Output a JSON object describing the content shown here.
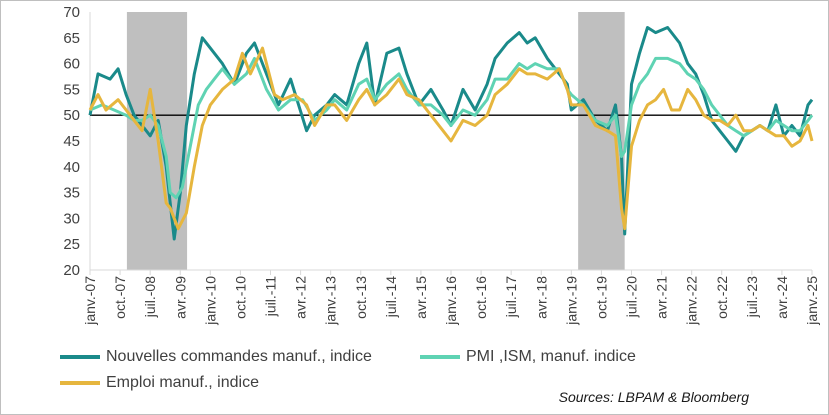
{
  "chart_data": {
    "type": "line",
    "ylim": [
      20,
      70
    ],
    "yticks": [
      20,
      25,
      30,
      35,
      40,
      45,
      50,
      55,
      60,
      65,
      70
    ],
    "xlim": [
      2007.0,
      2025.0
    ],
    "reference_line": 50,
    "recessions": [
      [
        2007.92,
        2009.42
      ],
      [
        2019.17,
        2020.33
      ]
    ],
    "xtick_labels": [
      "janv.-07",
      "oct.-07",
      "juil.-08",
      "avr.-09",
      "janv.-10",
      "oct.-10",
      "juil.-11",
      "avr.-12",
      "janv.-13",
      "oct.-13",
      "juil.-14",
      "avr.-15",
      "janv.-16",
      "oct.-16",
      "juil.-17",
      "avr.-18",
      "janv.-19",
      "oct.-19",
      "juil.-20",
      "avr.-21",
      "janv.-22",
      "oct.-22",
      "juil.-23",
      "avr.-24",
      "janv.-25"
    ],
    "series": [
      {
        "name": "Nouvelles commandes manuf., indice",
        "color": "#1a8a8a",
        "points": [
          [
            2007.0,
            50
          ],
          [
            2007.2,
            58
          ],
          [
            2007.5,
            57
          ],
          [
            2007.7,
            59
          ],
          [
            2007.9,
            54
          ],
          [
            2008.1,
            50
          ],
          [
            2008.3,
            48
          ],
          [
            2008.5,
            46
          ],
          [
            2008.7,
            49
          ],
          [
            2008.9,
            40
          ],
          [
            2009.0,
            33
          ],
          [
            2009.1,
            26
          ],
          [
            2009.25,
            35
          ],
          [
            2009.4,
            48
          ],
          [
            2009.6,
            58
          ],
          [
            2009.8,
            65
          ],
          [
            2010.0,
            63
          ],
          [
            2010.3,
            60
          ],
          [
            2010.6,
            56
          ],
          [
            2010.9,
            62
          ],
          [
            2011.1,
            64
          ],
          [
            2011.4,
            58
          ],
          [
            2011.7,
            52
          ],
          [
            2012.0,
            57
          ],
          [
            2012.2,
            52
          ],
          [
            2012.4,
            47
          ],
          [
            2012.6,
            50
          ],
          [
            2012.9,
            52
          ],
          [
            2013.1,
            54
          ],
          [
            2013.4,
            52
          ],
          [
            2013.7,
            60
          ],
          [
            2013.9,
            64
          ],
          [
            2014.1,
            52
          ],
          [
            2014.4,
            62
          ],
          [
            2014.7,
            63
          ],
          [
            2014.9,
            58
          ],
          [
            2015.2,
            52
          ],
          [
            2015.5,
            55
          ],
          [
            2015.8,
            51
          ],
          [
            2016.0,
            48
          ],
          [
            2016.3,
            55
          ],
          [
            2016.6,
            51
          ],
          [
            2016.9,
            56
          ],
          [
            2017.1,
            61
          ],
          [
            2017.4,
            64
          ],
          [
            2017.7,
            66
          ],
          [
            2017.9,
            64
          ],
          [
            2018.1,
            65
          ],
          [
            2018.4,
            61
          ],
          [
            2018.7,
            58
          ],
          [
            2018.9,
            56
          ],
          [
            2019.0,
            51
          ],
          [
            2019.3,
            53
          ],
          [
            2019.6,
            49
          ],
          [
            2019.9,
            47
          ],
          [
            2020.1,
            52
          ],
          [
            2020.25,
            42
          ],
          [
            2020.33,
            27
          ],
          [
            2020.5,
            56
          ],
          [
            2020.7,
            62
          ],
          [
            2020.9,
            67
          ],
          [
            2021.1,
            66
          ],
          [
            2021.4,
            67
          ],
          [
            2021.7,
            64
          ],
          [
            2021.9,
            60
          ],
          [
            2022.1,
            58
          ],
          [
            2022.3,
            54
          ],
          [
            2022.5,
            49
          ],
          [
            2022.7,
            47
          ],
          [
            2022.9,
            45
          ],
          [
            2023.1,
            43
          ],
          [
            2023.3,
            46
          ],
          [
            2023.5,
            47
          ],
          [
            2023.7,
            48
          ],
          [
            2023.9,
            47
          ],
          [
            2024.1,
            52
          ],
          [
            2024.3,
            46
          ],
          [
            2024.5,
            48
          ],
          [
            2024.7,
            46
          ],
          [
            2024.9,
            52
          ],
          [
            2025.0,
            53
          ]
        ]
      },
      {
        "name": "PMI ,ISM, manuf. indice",
        "color": "#5fd3b3",
        "points": [
          [
            2007.0,
            51
          ],
          [
            2007.3,
            52
          ],
          [
            2007.6,
            51
          ],
          [
            2007.9,
            50
          ],
          [
            2008.1,
            49
          ],
          [
            2008.3,
            49
          ],
          [
            2008.5,
            50
          ],
          [
            2008.7,
            48
          ],
          [
            2008.9,
            42
          ],
          [
            2009.0,
            35
          ],
          [
            2009.15,
            34
          ],
          [
            2009.3,
            36
          ],
          [
            2009.5,
            44
          ],
          [
            2009.7,
            52
          ],
          [
            2009.9,
            55
          ],
          [
            2010.1,
            57
          ],
          [
            2010.3,
            59
          ],
          [
            2010.6,
            56
          ],
          [
            2010.9,
            58
          ],
          [
            2011.1,
            61
          ],
          [
            2011.4,
            55
          ],
          [
            2011.7,
            51
          ],
          [
            2012.0,
            53
          ],
          [
            2012.3,
            53
          ],
          [
            2012.6,
            49
          ],
          [
            2012.9,
            51
          ],
          [
            2013.1,
            53
          ],
          [
            2013.4,
            51
          ],
          [
            2013.7,
            56
          ],
          [
            2013.9,
            57
          ],
          [
            2014.1,
            53
          ],
          [
            2014.4,
            56
          ],
          [
            2014.7,
            58
          ],
          [
            2014.9,
            55
          ],
          [
            2015.2,
            52
          ],
          [
            2015.5,
            52
          ],
          [
            2015.8,
            50
          ],
          [
            2016.0,
            48
          ],
          [
            2016.3,
            51
          ],
          [
            2016.6,
            50
          ],
          [
            2016.9,
            53
          ],
          [
            2017.1,
            57
          ],
          [
            2017.4,
            57
          ],
          [
            2017.7,
            60
          ],
          [
            2017.9,
            59
          ],
          [
            2018.1,
            60
          ],
          [
            2018.4,
            59
          ],
          [
            2018.7,
            59
          ],
          [
            2018.9,
            55
          ],
          [
            2019.0,
            54
          ],
          [
            2019.3,
            52
          ],
          [
            2019.6,
            49
          ],
          [
            2019.9,
            48
          ],
          [
            2020.1,
            50
          ],
          [
            2020.25,
            42
          ],
          [
            2020.33,
            43
          ],
          [
            2020.5,
            52
          ],
          [
            2020.7,
            56
          ],
          [
            2020.9,
            58
          ],
          [
            2021.1,
            61
          ],
          [
            2021.4,
            61
          ],
          [
            2021.7,
            60
          ],
          [
            2021.9,
            58
          ],
          [
            2022.1,
            57
          ],
          [
            2022.3,
            55
          ],
          [
            2022.5,
            52
          ],
          [
            2022.7,
            50
          ],
          [
            2022.9,
            48
          ],
          [
            2023.1,
            47
          ],
          [
            2023.3,
            46
          ],
          [
            2023.5,
            47
          ],
          [
            2023.7,
            48
          ],
          [
            2023.9,
            47
          ],
          [
            2024.1,
            49
          ],
          [
            2024.3,
            48
          ],
          [
            2024.5,
            47
          ],
          [
            2024.7,
            47
          ],
          [
            2024.9,
            49
          ],
          [
            2025.0,
            50
          ]
        ]
      },
      {
        "name": "Emploi manuf., indice",
        "color": "#e6b63e",
        "points": [
          [
            2007.0,
            51
          ],
          [
            2007.2,
            54
          ],
          [
            2007.4,
            51
          ],
          [
            2007.7,
            53
          ],
          [
            2007.9,
            51
          ],
          [
            2008.1,
            49
          ],
          [
            2008.3,
            47
          ],
          [
            2008.5,
            55
          ],
          [
            2008.7,
            45
          ],
          [
            2008.9,
            33
          ],
          [
            2009.0,
            32
          ],
          [
            2009.2,
            28
          ],
          [
            2009.4,
            31
          ],
          [
            2009.6,
            40
          ],
          [
            2009.8,
            48
          ],
          [
            2010.0,
            52
          ],
          [
            2010.3,
            55
          ],
          [
            2010.6,
            57
          ],
          [
            2010.8,
            62
          ],
          [
            2011.0,
            58
          ],
          [
            2011.3,
            63
          ],
          [
            2011.6,
            54
          ],
          [
            2011.8,
            53
          ],
          [
            2012.1,
            54
          ],
          [
            2012.4,
            52
          ],
          [
            2012.6,
            48
          ],
          [
            2012.9,
            52
          ],
          [
            2013.1,
            52
          ],
          [
            2013.4,
            49
          ],
          [
            2013.7,
            53
          ],
          [
            2013.9,
            55
          ],
          [
            2014.1,
            52
          ],
          [
            2014.4,
            54
          ],
          [
            2014.7,
            57
          ],
          [
            2014.9,
            54
          ],
          [
            2015.2,
            53
          ],
          [
            2015.5,
            50
          ],
          [
            2015.8,
            47
          ],
          [
            2016.0,
            45
          ],
          [
            2016.3,
            49
          ],
          [
            2016.6,
            48
          ],
          [
            2016.9,
            50
          ],
          [
            2017.1,
            54
          ],
          [
            2017.4,
            56
          ],
          [
            2017.7,
            59
          ],
          [
            2017.9,
            58
          ],
          [
            2018.1,
            58
          ],
          [
            2018.4,
            57
          ],
          [
            2018.7,
            59
          ],
          [
            2018.9,
            55
          ],
          [
            2019.0,
            52
          ],
          [
            2019.3,
            52
          ],
          [
            2019.6,
            48
          ],
          [
            2019.9,
            47
          ],
          [
            2020.1,
            46
          ],
          [
            2020.25,
            32
          ],
          [
            2020.33,
            28
          ],
          [
            2020.5,
            44
          ],
          [
            2020.7,
            49
          ],
          [
            2020.9,
            52
          ],
          [
            2021.1,
            53
          ],
          [
            2021.3,
            55
          ],
          [
            2021.5,
            51
          ],
          [
            2021.7,
            51
          ],
          [
            2021.9,
            55
          ],
          [
            2022.1,
            53
          ],
          [
            2022.3,
            50
          ],
          [
            2022.5,
            49
          ],
          [
            2022.7,
            49
          ],
          [
            2022.9,
            48
          ],
          [
            2023.1,
            50
          ],
          [
            2023.3,
            47
          ],
          [
            2023.5,
            47
          ],
          [
            2023.7,
            48
          ],
          [
            2023.9,
            47
          ],
          [
            2024.1,
            46
          ],
          [
            2024.3,
            46
          ],
          [
            2024.5,
            44
          ],
          [
            2024.7,
            45
          ],
          [
            2024.9,
            48
          ],
          [
            2025.0,
            45
          ]
        ]
      }
    ],
    "source": "Sources: LBPAM & Bloomberg"
  }
}
